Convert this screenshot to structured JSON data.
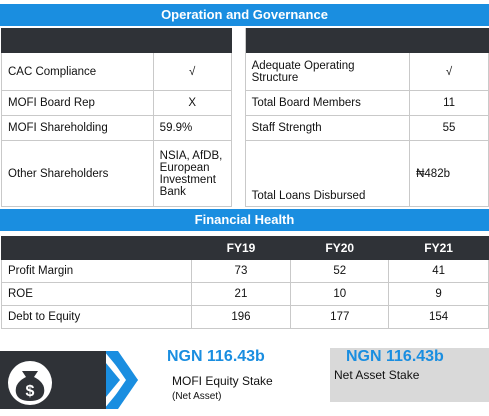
{
  "operation": {
    "title": "Operation and Governance",
    "rows": [
      {
        "l1": "CAC Compliance",
        "v1": "√",
        "l2": "Adequate Operating Structure",
        "v2": "√"
      },
      {
        "l1": "MOFI Board Rep",
        "v1": "X",
        "l2": "Total Board Members",
        "v2": "11"
      },
      {
        "l1": "MOFI Shareholding",
        "v1": "59.9%",
        "l2": "Staff Strength",
        "v2": "55"
      },
      {
        "l1": "Other Shareholders",
        "v1": "NSIA, AfDB, European Investment Bank",
        "l2": "Total Loans Disbursed",
        "v2": "₦482b"
      }
    ]
  },
  "financial": {
    "title": "Financial Health",
    "years": [
      "FY19",
      "FY20",
      "FY21"
    ],
    "rows": [
      {
        "label": "Profit Margin",
        "values": [
          "73",
          "52",
          "41"
        ]
      },
      {
        "label": "ROE",
        "values": [
          "21",
          "10",
          "9"
        ]
      },
      {
        "label": "Debt to Equity",
        "values": [
          "196",
          "177",
          "154"
        ]
      }
    ]
  },
  "stakes": {
    "equity_value": "NGN 116.43b",
    "equity_label": "MOFI Equity Stake",
    "equity_sub": "(Net Asset)",
    "net_value": "NGN 116.43b",
    "net_label": "Net Asset Stake"
  },
  "colors": {
    "accent": "#1a8ee0",
    "dark": "#2f3237",
    "grey_box": "#d9d9d9"
  },
  "icons": {
    "money_bag": "money-bag-icon",
    "chevron": "chevron-right-icon"
  }
}
